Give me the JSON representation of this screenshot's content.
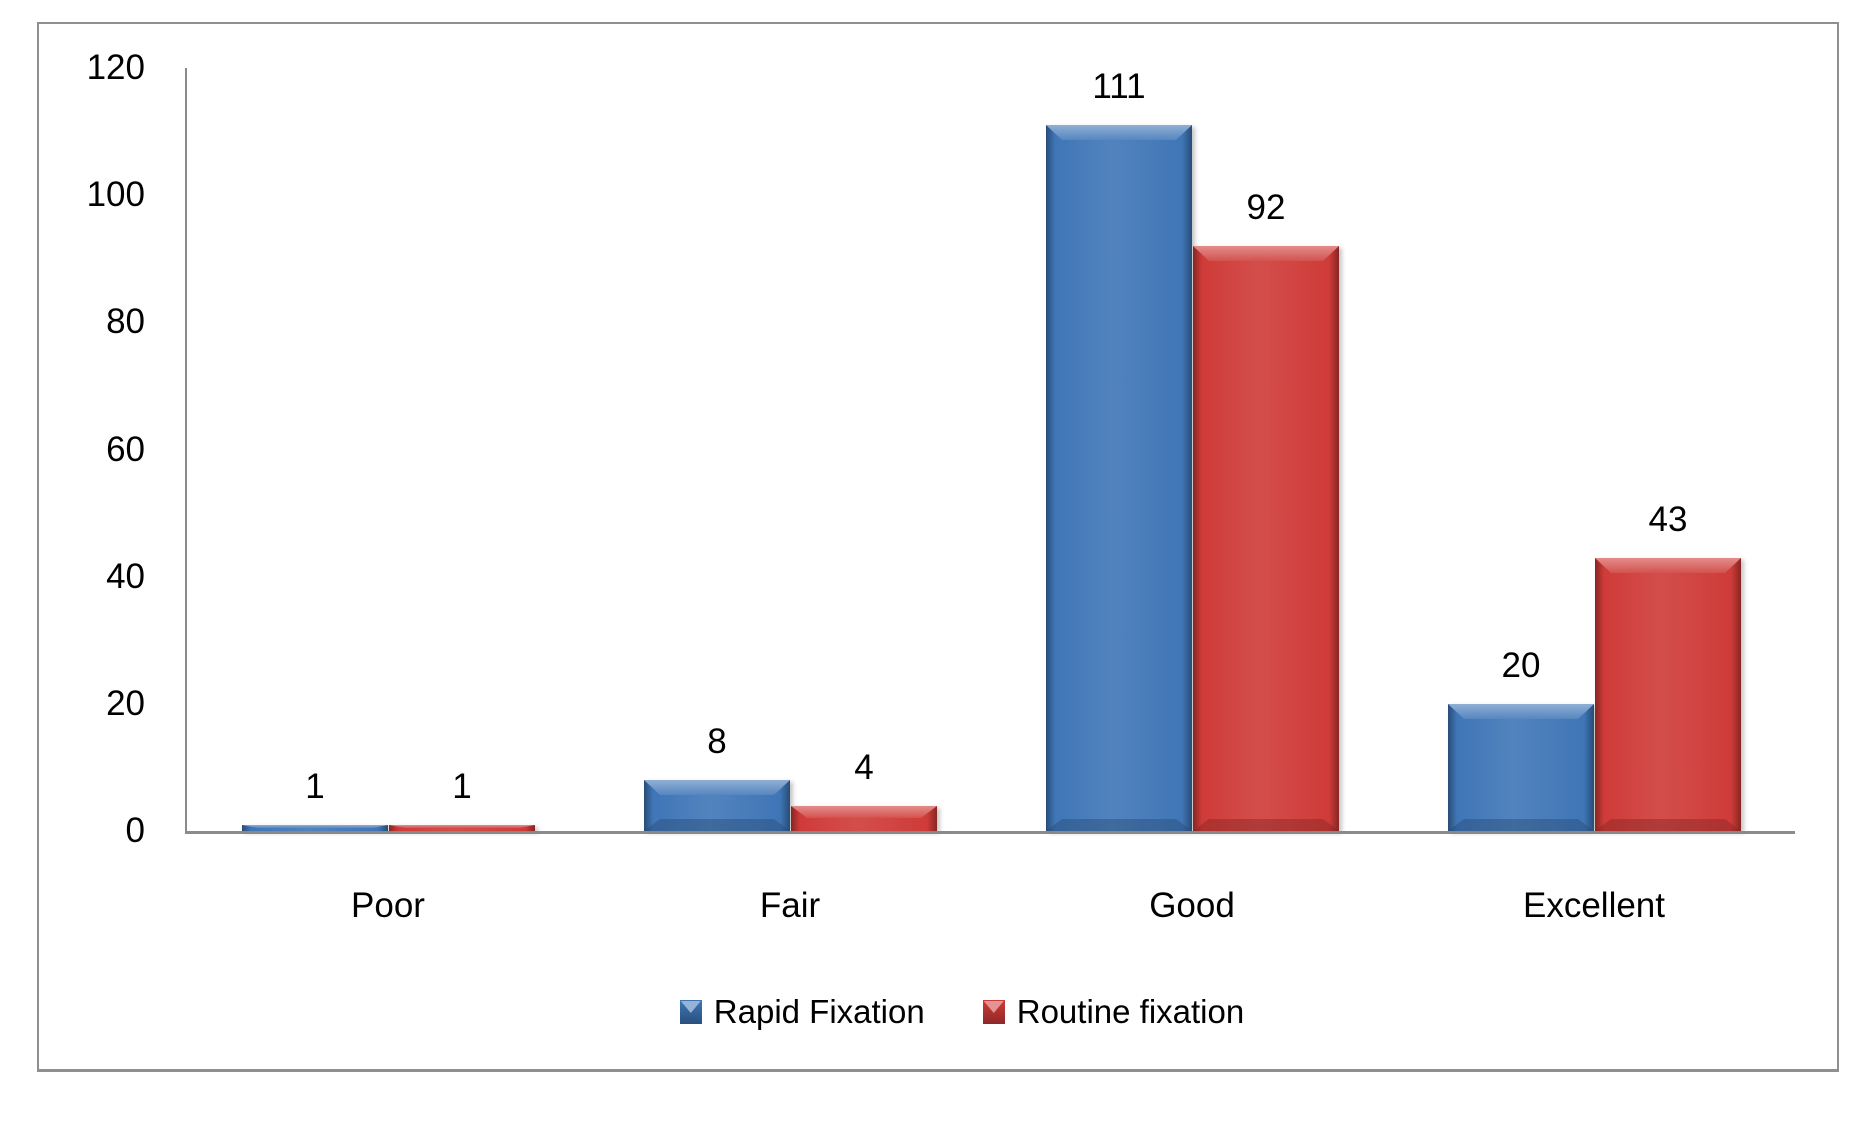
{
  "frame": {
    "border_color": "#8f8f8f",
    "background": "#ffffff"
  },
  "chart_data": {
    "type": "bar",
    "categories": [
      "Poor",
      "Fair",
      "Good",
      "Excellent"
    ],
    "series": [
      {
        "name": "Rapid Fixation",
        "color": "#3F76B7",
        "values": [
          1,
          8,
          111,
          20
        ]
      },
      {
        "name": "Routine fixation",
        "color": "#CF3B38",
        "values": [
          1,
          4,
          92,
          43
        ]
      }
    ],
    "title": "",
    "xlabel": "",
    "ylabel": "",
    "ylim": [
      0,
      120
    ],
    "yticks": [
      0,
      20,
      40,
      60,
      80,
      100,
      120
    ],
    "grid": false,
    "legend_position": "bottom",
    "data_labels": true,
    "axis_color": "#8b8b8b",
    "text_color": "#000000",
    "bar_style": "3d-bevel"
  }
}
